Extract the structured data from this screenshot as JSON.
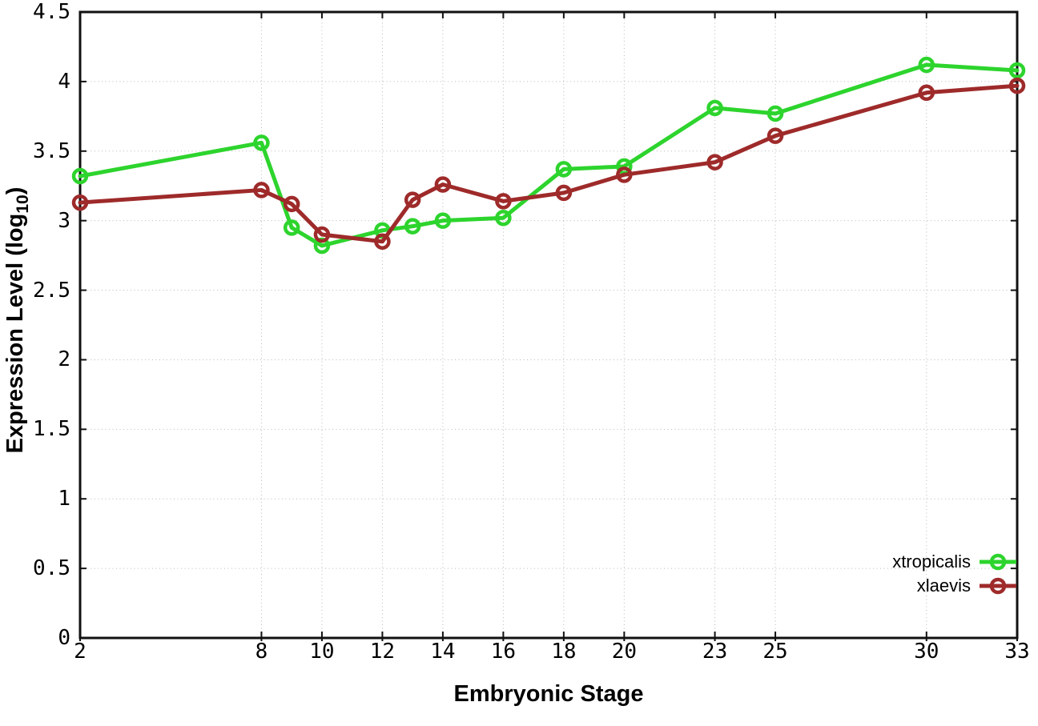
{
  "chart_data": {
    "type": "line",
    "x": [
      2,
      8,
      9,
      10,
      12,
      13,
      14,
      16,
      18,
      20,
      23,
      25,
      30,
      33
    ],
    "series": [
      {
        "name": "xtropicalis",
        "color": "#2dd42d",
        "values": [
          3.32,
          3.56,
          2.95,
          2.82,
          2.93,
          2.96,
          3.0,
          3.02,
          3.37,
          3.39,
          3.81,
          3.77,
          4.12,
          4.08
        ]
      },
      {
        "name": "xlaevis",
        "color": "#9e2a2a",
        "values": [
          3.13,
          3.22,
          3.12,
          2.9,
          2.85,
          3.15,
          3.26,
          3.14,
          3.2,
          3.33,
          3.42,
          3.61,
          3.92,
          3.97
        ]
      }
    ],
    "xlabel": "Embryonic Stage",
    "ylabel": "Expression Level (log10)",
    "ylabel_main": "Expression Level (log",
    "ylabel_sub": "10",
    "ylabel_suffix": ")",
    "xlim": [
      2,
      33
    ],
    "ylim": [
      0,
      4.5
    ],
    "xticks": [
      2,
      8,
      10,
      12,
      14,
      16,
      18,
      20,
      23,
      25,
      30,
      33
    ],
    "xtick_labels": [
      "2",
      "8",
      "10",
      "12",
      "14",
      "16",
      "18",
      "20",
      "23",
      "25",
      "30",
      "33"
    ],
    "yticks": [
      0,
      0.5,
      1,
      1.5,
      2,
      2.5,
      3,
      3.5,
      4,
      4.5
    ],
    "ytick_labels": [
      "0",
      "0.5",
      "1",
      "1.5",
      "2",
      "2.5",
      "3",
      "3.5",
      "4",
      "4.5"
    ],
    "grid": true,
    "grid_color": "#b9b9b9",
    "border_color": "#111111",
    "background": "#ffffff",
    "legend_position": "bottom-right",
    "legend": [
      "xtropicalis",
      "xlaevis"
    ]
  }
}
